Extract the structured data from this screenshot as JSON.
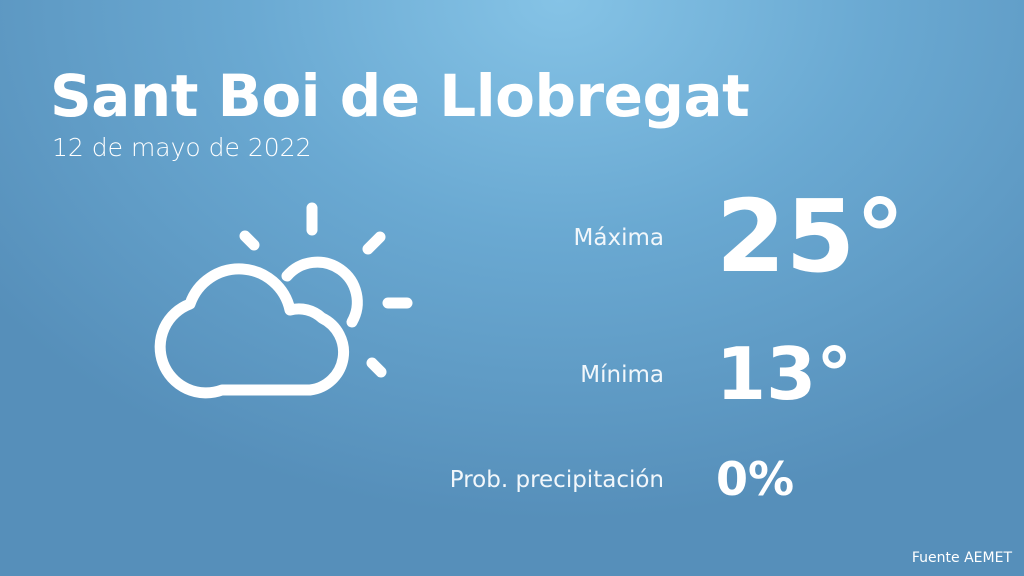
{
  "header": {
    "city": "Sant Boi de Llobregat",
    "date": "12 de mayo de 2022"
  },
  "forecast": {
    "icon": "partly-cloudy-icon",
    "max_label": "Máxima",
    "max_value": "25°",
    "min_label": "Mínima",
    "min_value": "13°",
    "precip_label": "Prob. precipitación",
    "precip_value": "0%"
  },
  "footer": {
    "source": "Fuente AEMET"
  },
  "colors": {
    "background_top": "#85c3e6",
    "background_edge": "#568fba",
    "text": "#ffffff"
  }
}
